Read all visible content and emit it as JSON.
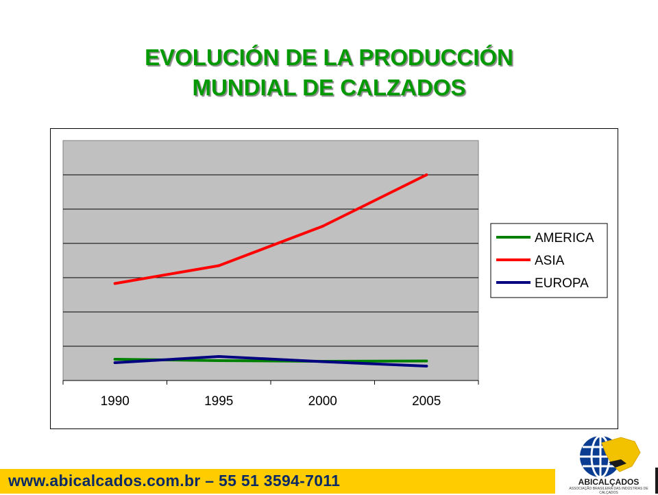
{
  "slide": {
    "title_line1": "EVOLUCIÓN DE LA PRODUCCIÓN",
    "title_line2": "MUNDIAL DE CALZADOS",
    "footer": "www.abicalcados.com.br – 55 51 3594-7011",
    "logo_name": "ABICALÇADOS",
    "logo_subtitle": "ASSOCIAÇÃO BRASILEIRA DAS INDÚSTRIAS DE CALÇADOS"
  },
  "colors": {
    "title": "#009900",
    "plot_bg": "#c0c0c0",
    "footer_bg": "#ffcc00",
    "footer_text": "#0a2a66"
  },
  "chart_data": {
    "type": "line",
    "categories": [
      "1990",
      "1995",
      "2000",
      "2005"
    ],
    "ylim": [
      0,
      7
    ],
    "grid": true,
    "y_tick_labels_shown": false,
    "legend_placement": "right",
    "series": [
      {
        "name": "AMERICA",
        "color": "#008000",
        "values": [
          0.62,
          0.58,
          0.56,
          0.57
        ]
      },
      {
        "name": "ASIA",
        "color": "#ff0000",
        "values": [
          2.83,
          3.35,
          4.5,
          6.0
        ]
      },
      {
        "name": "EUROPA",
        "color": "#000080",
        "values": [
          0.52,
          0.7,
          0.55,
          0.42
        ]
      }
    ]
  }
}
